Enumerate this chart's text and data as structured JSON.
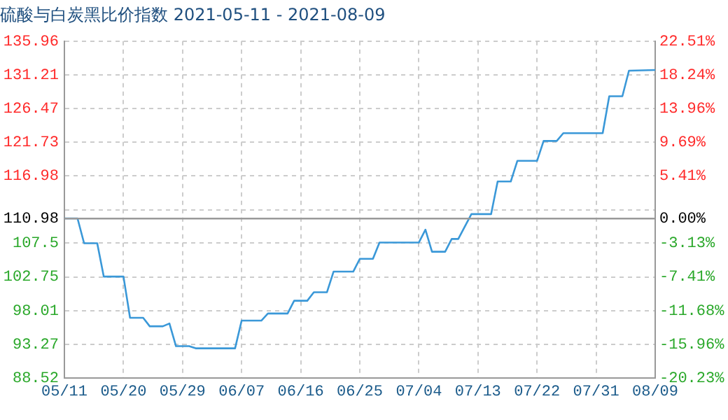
{
  "chart_data": {
    "type": "line",
    "title": "硫酸与白炭黑比价指数 2021-05-11 - 2021-08-09",
    "x": [
      "2021-05-11",
      "2021-05-13",
      "2021-05-14",
      "2021-05-16",
      "2021-05-17",
      "2021-05-20",
      "2021-05-21",
      "2021-05-23",
      "2021-05-24",
      "2021-05-26",
      "2021-05-27",
      "2021-05-28",
      "2021-05-30",
      "2021-05-31",
      "2021-06-06",
      "2021-06-07",
      "2021-06-10",
      "2021-06-11",
      "2021-06-14",
      "2021-06-15",
      "2021-06-17",
      "2021-06-18",
      "2021-06-20",
      "2021-06-21",
      "2021-06-24",
      "2021-06-25",
      "2021-06-27",
      "2021-06-28",
      "2021-07-04",
      "2021-07-05",
      "2021-07-06",
      "2021-07-08",
      "2021-07-09",
      "2021-07-10",
      "2021-07-12",
      "2021-07-15",
      "2021-07-16",
      "2021-07-18",
      "2021-07-19",
      "2021-07-22",
      "2021-07-23",
      "2021-07-25",
      "2021-07-26",
      "2021-08-01",
      "2021-08-02",
      "2021-08-04",
      "2021-08-05",
      "2021-08-09"
    ],
    "series": [
      {
        "color": "#3a98d8",
        "values": [
          111.0,
          111.0,
          107.5,
          107.5,
          102.8,
          102.8,
          97.0,
          97.0,
          95.8,
          95.8,
          96.2,
          93.0,
          93.0,
          92.7,
          92.7,
          96.6,
          96.6,
          97.6,
          97.6,
          99.4,
          99.4,
          100.6,
          100.6,
          103.5,
          103.5,
          105.3,
          105.3,
          107.6,
          107.6,
          109.4,
          106.3,
          106.3,
          108.1,
          108.1,
          111.6,
          111.6,
          116.2,
          116.2,
          119.1,
          119.1,
          121.9,
          121.9,
          123.0,
          123.0,
          128.2,
          128.2,
          131.8,
          131.9
        ]
      }
    ],
    "xlim": [
      "2021-05-11",
      "2021-08-09"
    ],
    "xticks": [
      {
        "value": "2021-05-11",
        "label": "05/11"
      },
      {
        "value": "2021-05-20",
        "label": "05/20"
      },
      {
        "value": "2021-05-29",
        "label": "05/29"
      },
      {
        "value": "2021-06-07",
        "label": "06/07"
      },
      {
        "value": "2021-06-16",
        "label": "06/16"
      },
      {
        "value": "2021-06-25",
        "label": "06/25"
      },
      {
        "value": "2021-07-04",
        "label": "07/04"
      },
      {
        "value": "2021-07-13",
        "label": "07/13"
      },
      {
        "value": "2021-07-22",
        "label": "07/22"
      },
      {
        "value": "2021-07-31",
        "label": "07/31"
      },
      {
        "value": "2021-08-09",
        "label": "08/09"
      }
    ],
    "ylim": [
      88.52,
      135.96
    ],
    "yticks": [
      88.52,
      93.27,
      98.01,
      102.75,
      107.5,
      110.98,
      {
        "value": 112.23,
        "label": null
      },
      116.98,
      121.73,
      126.47,
      131.21,
      135.96
    ],
    "y2lim": [
      -20.23,
      22.51
    ],
    "y2ticks": [
      {
        "value": -20.23,
        "label": "-20.23%"
      },
      {
        "value": -15.96,
        "label": "-15.96%"
      },
      {
        "value": -11.68,
        "label": "-11.68%"
      },
      {
        "value": -7.41,
        "label": "-7.41%"
      },
      {
        "value": -3.13,
        "label": "-3.13%"
      },
      {
        "value": 0,
        "label": "0.00%"
      },
      {
        "value": 5.41,
        "label": "5.41%"
      },
      {
        "value": 9.69,
        "label": "9.69%"
      },
      {
        "value": 13.96,
        "label": "13.96%"
      },
      {
        "value": 18.24,
        "label": "18.24%"
      },
      {
        "value": 22.51,
        "label": "22.51%"
      }
    ],
    "ref_lines": [
      {
        "axis": "y",
        "value": 110.98,
        "color": "#999999",
        "line_style": "solid"
      }
    ],
    "grid": true,
    "legend": false,
    "marker": "none",
    "line_style": "solid"
  }
}
